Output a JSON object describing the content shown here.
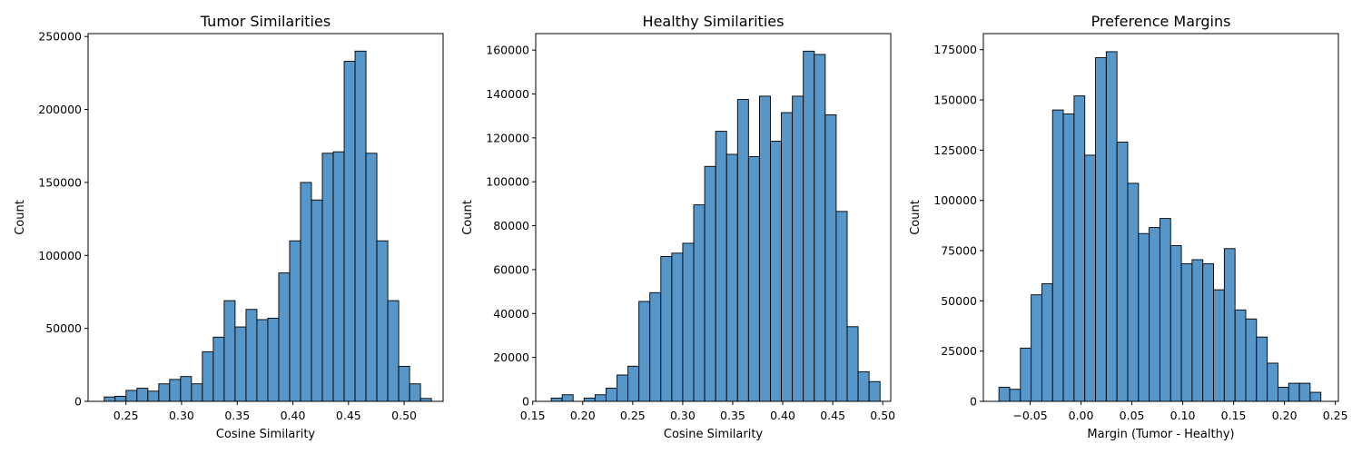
{
  "chart_data": [
    {
      "type": "bar",
      "title": "Tumor Similarities",
      "xlabel": "Cosine Similarity",
      "ylabel": "Count",
      "xlim": [
        0.216,
        0.535
      ],
      "ylim": [
        0,
        252000
      ],
      "xticks": [
        0.25,
        0.3,
        0.35,
        0.4,
        0.45,
        0.5
      ],
      "xtick_labels": [
        "0.25",
        "0.30",
        "0.35",
        "0.40",
        "0.45",
        "0.50"
      ],
      "yticks": [
        0,
        50000,
        100000,
        150000,
        200000,
        250000
      ],
      "ytick_labels": [
        "0",
        "50000",
        "100000",
        "150000",
        "200000",
        "250000"
      ],
      "bin_start": 0.2305,
      "bin_width": 0.0098,
      "values": [
        3000,
        3500,
        7500,
        9000,
        7000,
        12000,
        15000,
        17000,
        12000,
        34000,
        44000,
        69000,
        51000,
        63000,
        56000,
        57000,
        88000,
        110000,
        150000,
        138000,
        170000,
        171000,
        233000,
        240000,
        170000,
        110000,
        69000,
        24000,
        12000,
        2000
      ]
    },
    {
      "type": "bar",
      "title": "Healthy Similarities",
      "xlabel": "Cosine Similarity",
      "ylabel": "Count",
      "xlim": [
        0.153,
        0.508
      ],
      "ylim": [
        0,
        167500
      ],
      "xticks": [
        0.15,
        0.2,
        0.25,
        0.3,
        0.35,
        0.4,
        0.45,
        0.5
      ],
      "xtick_labels": [
        "0.15",
        "0.20",
        "0.25",
        "0.30",
        "0.35",
        "0.40",
        "0.45",
        "0.50"
      ],
      "yticks": [
        0,
        20000,
        40000,
        60000,
        80000,
        100000,
        120000,
        140000,
        160000
      ],
      "ytick_labels": [
        "0",
        "20000",
        "40000",
        "60000",
        "80000",
        "100000",
        "120000",
        "140000",
        "160000"
      ],
      "bin_start": 0.1685,
      "bin_width": 0.01096,
      "values": [
        1500,
        3000,
        0,
        1500,
        3000,
        6000,
        12000,
        16000,
        45500,
        49500,
        66000,
        67500,
        72000,
        89500,
        107000,
        123000,
        112500,
        137500,
        111500,
        139000,
        118500,
        131500,
        139000,
        159500,
        158000,
        130500,
        86500,
        34000,
        13500,
        9000
      ]
    },
    {
      "type": "bar",
      "title": "Preference Margins",
      "xlabel": "Margin (Tumor - Healthy)",
      "ylabel": "Count",
      "xlim": [
        -0.096,
        0.253
      ],
      "ylim": [
        0,
        183000
      ],
      "xticks": [
        -0.05,
        0.0,
        0.05,
        0.1,
        0.15,
        0.2,
        0.25
      ],
      "xtick_labels": [
        "−0.05",
        "0.00",
        "0.05",
        "0.10",
        "0.15",
        "0.20",
        "0.25"
      ],
      "yticks": [
        0,
        25000,
        50000,
        75000,
        100000,
        125000,
        150000,
        175000
      ],
      "ytick_labels": [
        "0",
        "25000",
        "50000",
        "75000",
        "100000",
        "125000",
        "150000",
        "175000"
      ],
      "bin_start": -0.0807,
      "bin_width": 0.01055,
      "values": [
        7000,
        6000,
        26500,
        53000,
        58500,
        145000,
        143000,
        152000,
        122500,
        171000,
        174000,
        129000,
        108500,
        83500,
        86500,
        91000,
        77500,
        68500,
        70500,
        68500,
        55500,
        76000,
        45500,
        41000,
        32000,
        19000,
        7000,
        9000,
        9000,
        4500
      ]
    }
  ]
}
